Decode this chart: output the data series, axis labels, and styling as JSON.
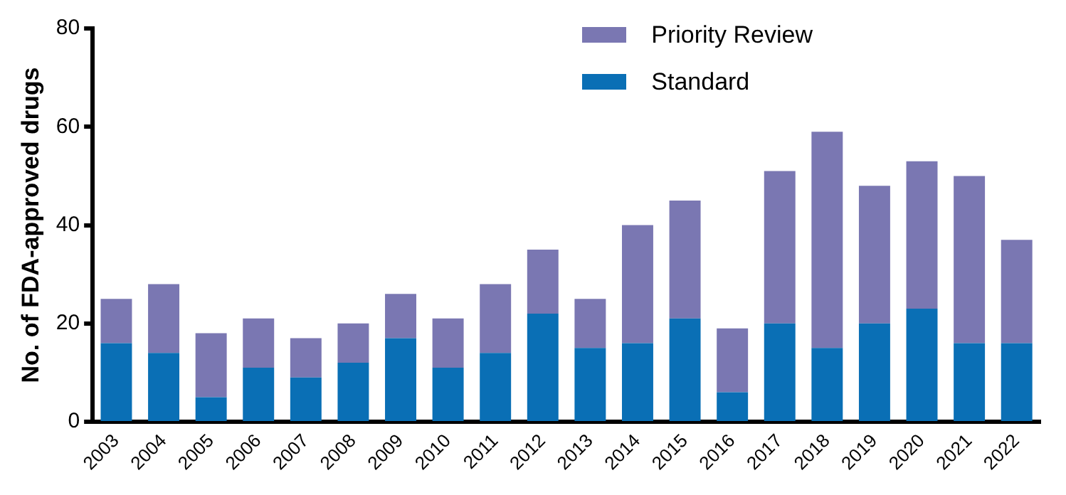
{
  "chart_data": {
    "type": "bar",
    "stacked": true,
    "ylabel": "No. of FDA-approved drugs",
    "categories": [
      "2003",
      "2004",
      "2005",
      "2006",
      "2007",
      "2008",
      "2009",
      "2010",
      "2011",
      "2012",
      "2013",
      "2014",
      "2015",
      "2016",
      "2017",
      "2018",
      "2019",
      "2020",
      "2021",
      "2022"
    ],
    "series": [
      {
        "name": "Standard",
        "color": "#0a6fb5",
        "values": [
          16,
          14,
          5,
          11,
          9,
          12,
          17,
          11,
          14,
          22,
          15,
          16,
          21,
          6,
          20,
          15,
          20,
          23,
          16,
          16
        ]
      },
      {
        "name": "Priority Review",
        "color": "#7a77b2",
        "values": [
          9,
          14,
          13,
          10,
          8,
          8,
          9,
          10,
          14,
          13,
          10,
          24,
          24,
          13,
          31,
          44,
          28,
          30,
          34,
          21
        ]
      }
    ],
    "ylim": [
      0,
      80
    ],
    "yticks": [
      0,
      20,
      40,
      60,
      80
    ],
    "grid": false,
    "legend": "top right"
  }
}
